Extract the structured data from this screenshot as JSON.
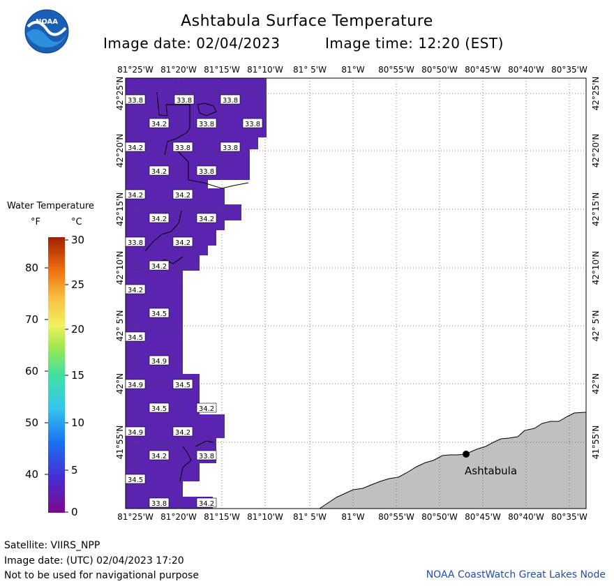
{
  "header": {
    "title": "Ashtabula Surface Temperature",
    "image_date": "Image date: 02/04/2023",
    "image_time": "Image time: 12:20 (EST)"
  },
  "logo": {
    "text": "NOAA",
    "color_outer": "#1a5fb4",
    "color_inner": "#2d8fe0"
  },
  "legend": {
    "title": "Water Temperature",
    "unit_f": "°F",
    "unit_c": "°C",
    "f_ticks": [
      "80",
      "70",
      "60",
      "50",
      "40"
    ],
    "c_ticks": [
      "30",
      "25",
      "20",
      "15",
      "10",
      "5",
      "0"
    ]
  },
  "map": {
    "lon_labels": [
      "81°25'W",
      "81°20'W",
      "81°15'W",
      "81°10'W",
      "81° 5'W",
      "81°W",
      "80°55'W",
      "80°50'W",
      "80°45'W",
      "80°40'W",
      "80°35'W"
    ],
    "lat_labels": [
      "42°25'N",
      "42°20'N",
      "42°15'N",
      "42°10'N",
      "42° 5'N",
      "42°N",
      "41°55'N"
    ],
    "city": "Ashtabula",
    "water_color": "#5a24b0",
    "land_color": "#c0c0c0",
    "temp_labels": [
      "33.8",
      "33.8",
      "33.8",
      "34.2",
      "33.8",
      "33.8",
      "34.2",
      "33.8",
      "33.8",
      "34.2",
      "33.8",
      "34.2",
      "34.2",
      "34.2",
      "34.2",
      "33.8",
      "34.2",
      "34.2",
      "34.2",
      "34.5",
      "34.5",
      "34.9",
      "34.9",
      "34.5",
      "34.5",
      "34.2",
      "34.9",
      "34.2",
      "34.2",
      "33.8",
      "34.5",
      "33.8",
      "34.2"
    ]
  },
  "footer": {
    "satellite": "Satellite: VIIRS_NPP",
    "utc_date": "Image date: (UTC) 02/04/2023  17:20",
    "disclaimer": "Not to be used for navigational purpose",
    "credit": "NOAA CoastWatch Great Lakes Node"
  }
}
